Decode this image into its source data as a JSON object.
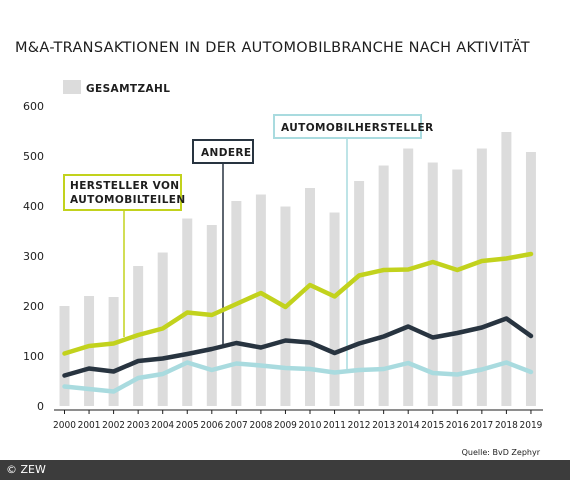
{
  "chart_data": {
    "type": "bar",
    "title": "M&A-TRANSAKTIONEN IN DER AUTOMOBILBRANCHE NACH AKTIVITÄT",
    "categories": [
      "2000",
      "2001",
      "2002",
      "2003",
      "2004",
      "2005",
      "2006",
      "2007",
      "2008",
      "2009",
      "2010",
      "2011",
      "2012",
      "2013",
      "2014",
      "2015",
      "2016",
      "2017",
      "2018",
      "2019"
    ],
    "y_ticks": [
      "0",
      "100",
      "200",
      "300",
      "400",
      "500",
      "600"
    ],
    "ylim": [
      0,
      600
    ],
    "grid": false,
    "bar_series": {
      "name": "GESAMTZAHL",
      "color": "#dcdcdc",
      "values": [
        200,
        220,
        218,
        280,
        307,
        375,
        362,
        410,
        423,
        399,
        436,
        387,
        450,
        481,
        515,
        487,
        473,
        515,
        548,
        508
      ]
    },
    "line_series": [
      {
        "name": "HERSTELLER VON AUTOMOBILTEILEN",
        "label_lines": [
          "HERSTELLER VON",
          "AUTOMOBILTEILEN"
        ],
        "color": "#c2d21d",
        "values": [
          105,
          120,
          125,
          142,
          155,
          187,
          182,
          204,
          226,
          198,
          242,
          219,
          261,
          272,
          273,
          288,
          272,
          290,
          295,
          304
        ]
      },
      {
        "name": "ANDERE",
        "label_lines": [
          "ANDERE"
        ],
        "color": "#283440",
        "values": [
          61,
          75,
          69,
          90,
          95,
          104,
          114,
          126,
          117,
          131,
          127,
          106,
          125,
          139,
          159,
          137,
          146,
          157,
          175,
          140
        ]
      },
      {
        "name": "AUTOMOBILHERSTELLER",
        "label_lines": [
          "AUTOMOBILHERSTELLER"
        ],
        "color": "#a9dbdf",
        "values": [
          39,
          34,
          29,
          56,
          64,
          87,
          72,
          85,
          81,
          76,
          74,
          67,
          72,
          74,
          86,
          66,
          63,
          73,
          87,
          68
        ]
      }
    ],
    "source": "Quelle: BvD Zephyr"
  },
  "footer": {
    "copyright": "© ZEW"
  }
}
